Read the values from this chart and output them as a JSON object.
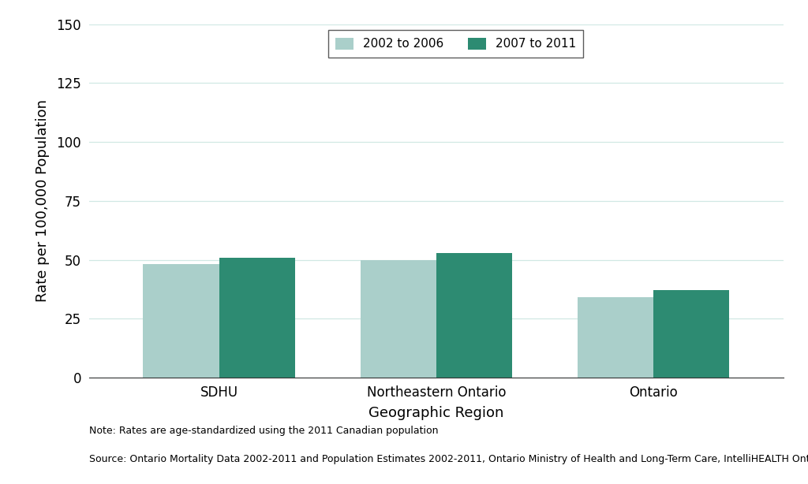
{
  "categories": [
    "SDHU",
    "Northeastern Ontario",
    "Ontario"
  ],
  "series": [
    {
      "label": "2002 to 2006",
      "values": [
        48,
        50,
        34
      ],
      "color": "#aacfca"
    },
    {
      "label": "2007 to 2011",
      "values": [
        51,
        53,
        37
      ],
      "color": "#2d8b72"
    }
  ],
  "xlabel": "Geographic Region",
  "ylabel": "Rate per 100,000 Population",
  "ylim": [
    0,
    150
  ],
  "yticks": [
    0,
    25,
    50,
    75,
    100,
    125,
    150
  ],
  "bar_width": 0.35,
  "legend_loc": "upper right",
  "note_line1": "Note: Rates are age-standardized using the 2011 Canadian population",
  "note_line2": "Source: Ontario Mortality Data 2002-2011 and Population Estimates 2002-2011, Ontario Ministry of Health and Long-Term Care, IntelliHEALTH Ontario",
  "background_color": "#ffffff",
  "grid_color": "#d0e8e4",
  "label_fontsize": 13,
  "tick_fontsize": 12,
  "note_fontsize": 9,
  "legend_fontsize": 11
}
